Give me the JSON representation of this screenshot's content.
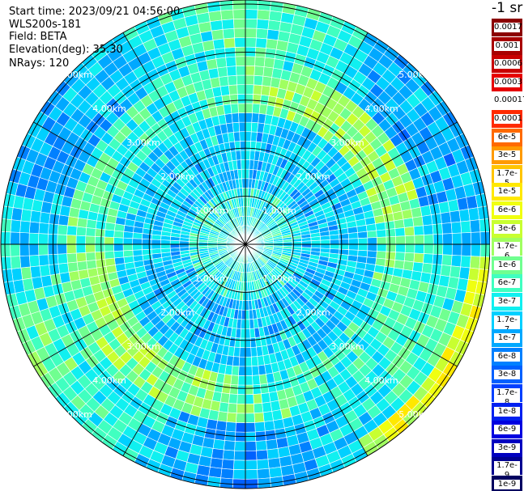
{
  "header": {
    "start_time": "Start time: 2023/09/21 04:56:00",
    "instrument": "WLS200s-181",
    "field": "Field: BETA",
    "elevation": "Elevation(deg): 35.30",
    "nrays": "NRays: 120"
  },
  "range_rings": {
    "unit": "km",
    "labels": [
      "1.00km",
      "2.00km",
      "3.00km",
      "4.00km",
      "5.00km"
    ],
    "values_km": [
      1,
      2,
      3,
      4,
      5
    ]
  },
  "colorbar": {
    "unit": "-1 sr",
    "levels": [
      {
        "label": "0.0017",
        "color": "#8b0000"
      },
      {
        "label": "0.001",
        "color": "#a80000"
      },
      {
        "label": "0.0006",
        "color": "#c80000"
      },
      {
        "label": "0.0003",
        "color": "#e60000"
      },
      {
        "label": "0.00017",
        "color": "#ffffff"
      },
      {
        "label": "0.0001",
        "color": "#ff2a00"
      },
      {
        "label": "6e-5",
        "color": "#ff6a00"
      },
      {
        "label": "3e-5",
        "color": "#ff9a00"
      },
      {
        "label": "1.7e-5",
        "color": "#ffc400"
      },
      {
        "label": "1e-5",
        "color": "#ffe800"
      },
      {
        "label": "6e-6",
        "color": "#f0ff10"
      },
      {
        "label": "3e-6",
        "color": "#c8ff30"
      },
      {
        "label": "1.7e-6",
        "color": "#a0ff60"
      },
      {
        "label": "1e-6",
        "color": "#70ff90"
      },
      {
        "label": "6e-7",
        "color": "#40ffc0"
      },
      {
        "label": "3e-7",
        "color": "#10f0f0"
      },
      {
        "label": "1.7e-7",
        "color": "#00d0ff"
      },
      {
        "label": "1e-7",
        "color": "#00a8ff"
      },
      {
        "label": "6e-8",
        "color": "#0080ff"
      },
      {
        "label": "3e-8",
        "color": "#0060ff"
      },
      {
        "label": "1.7e-8",
        "color": "#0040ff"
      },
      {
        "label": "1e-8",
        "color": "#0020f0"
      },
      {
        "label": "6e-9",
        "color": "#0000e0"
      },
      {
        "label": "3e-9",
        "color": "#0000c0"
      },
      {
        "label": "1.7e-9",
        "color": "#000090"
      },
      {
        "label": "1e-9",
        "color": "#000060"
      }
    ]
  },
  "display": {
    "n_rays": 120,
    "gates": 26
  }
}
